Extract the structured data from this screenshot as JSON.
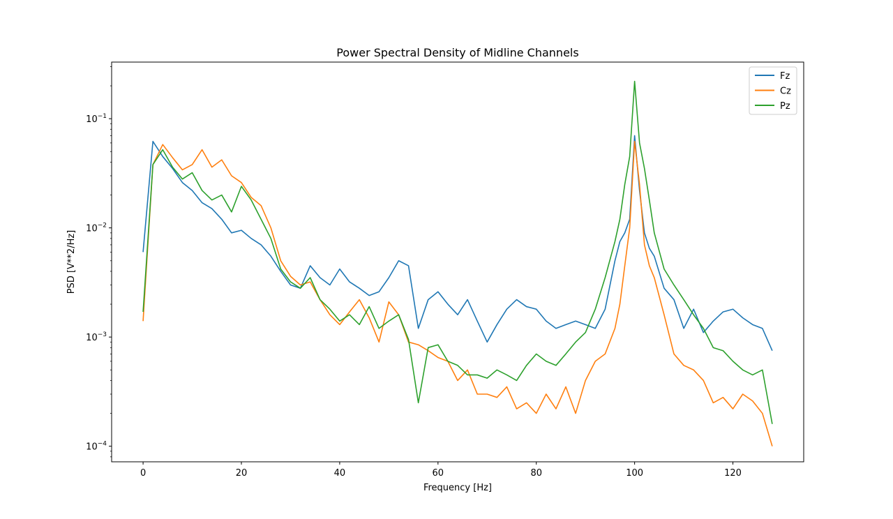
{
  "chart_data": {
    "type": "line",
    "title": "Power Spectral Density of Midline Channels",
    "xlabel": "Frequency [Hz]",
    "ylabel": "PSD [V**2/Hz]",
    "xlim": [
      -6.4,
      134.4
    ],
    "ylim": [
      7.2e-05,
      0.33
    ],
    "yscale": "log",
    "grid": false,
    "legend_position": "top-right",
    "x_ticks": [
      {
        "value": 0,
        "label": "0"
      },
      {
        "value": 20,
        "label": "20"
      },
      {
        "value": 40,
        "label": "40"
      },
      {
        "value": 60,
        "label": "60"
      },
      {
        "value": 80,
        "label": "80"
      },
      {
        "value": 100,
        "label": "100"
      },
      {
        "value": 120,
        "label": "120"
      }
    ],
    "y_ticks": [
      {
        "value": 0.0001,
        "base": "10",
        "exp": "−4"
      },
      {
        "value": 0.001,
        "base": "10",
        "exp": "−3"
      },
      {
        "value": 0.01,
        "base": "10",
        "exp": "−2"
      },
      {
        "value": 0.1,
        "base": "10",
        "exp": "−1"
      }
    ],
    "x": [
      0,
      2,
      4,
      6,
      8,
      10,
      12,
      14,
      16,
      18,
      20,
      22,
      24,
      26,
      28,
      30,
      32,
      34,
      36,
      38,
      40,
      42,
      44,
      46,
      48,
      50,
      52,
      54,
      56,
      58,
      60,
      62,
      64,
      66,
      68,
      70,
      72,
      74,
      76,
      78,
      80,
      82,
      84,
      86,
      88,
      90,
      92,
      94,
      96,
      97,
      98,
      99,
      100,
      101,
      102,
      103,
      104,
      106,
      108,
      110,
      112,
      114,
      116,
      118,
      120,
      122,
      124,
      126,
      128
    ],
    "series": [
      {
        "name": "Fz",
        "color": "#1f77b4",
        "values": [
          0.006,
          0.062,
          0.045,
          0.035,
          0.026,
          0.022,
          0.017,
          0.015,
          0.012,
          0.009,
          0.0095,
          0.008,
          0.007,
          0.0055,
          0.004,
          0.003,
          0.0028,
          0.0045,
          0.0035,
          0.003,
          0.0042,
          0.0032,
          0.0028,
          0.0024,
          0.0026,
          0.0035,
          0.005,
          0.0045,
          0.0012,
          0.0022,
          0.0026,
          0.002,
          0.0016,
          0.0022,
          0.0014,
          0.0009,
          0.0013,
          0.0018,
          0.0022,
          0.0019,
          0.0018,
          0.0014,
          0.0012,
          0.0013,
          0.0014,
          0.0013,
          0.0012,
          0.0018,
          0.005,
          0.0075,
          0.009,
          0.012,
          0.07,
          0.022,
          0.009,
          0.0065,
          0.0055,
          0.0028,
          0.0022,
          0.0012,
          0.0018,
          0.0011,
          0.0014,
          0.0017,
          0.0018,
          0.0015,
          0.0013,
          0.0012,
          0.00075
        ]
      },
      {
        "name": "Cz",
        "color": "#ff7f0e",
        "values": [
          0.0014,
          0.038,
          0.058,
          0.044,
          0.034,
          0.038,
          0.052,
          0.036,
          0.042,
          0.03,
          0.026,
          0.019,
          0.016,
          0.01,
          0.005,
          0.0036,
          0.003,
          0.0032,
          0.0022,
          0.0016,
          0.0013,
          0.0017,
          0.0022,
          0.0015,
          0.0009,
          0.0021,
          0.0016,
          0.0009,
          0.00085,
          0.00075,
          0.00065,
          0.0006,
          0.0004,
          0.0005,
          0.0003,
          0.0003,
          0.00028,
          0.00035,
          0.00022,
          0.00025,
          0.0002,
          0.0003,
          0.00022,
          0.00035,
          0.0002,
          0.0004,
          0.0006,
          0.0007,
          0.0012,
          0.002,
          0.0045,
          0.01,
          0.062,
          0.025,
          0.007,
          0.0045,
          0.0035,
          0.0016,
          0.0007,
          0.00055,
          0.0005,
          0.0004,
          0.00025,
          0.00028,
          0.00022,
          0.0003,
          0.00026,
          0.0002,
          0.0001
        ]
      },
      {
        "name": "Pz",
        "color": "#2ca02c",
        "values": [
          0.0017,
          0.038,
          0.052,
          0.036,
          0.028,
          0.032,
          0.022,
          0.018,
          0.02,
          0.014,
          0.024,
          0.018,
          0.012,
          0.008,
          0.0042,
          0.0032,
          0.0028,
          0.0035,
          0.0022,
          0.0018,
          0.0014,
          0.0016,
          0.0013,
          0.0019,
          0.0012,
          0.0014,
          0.0016,
          0.00095,
          0.00025,
          0.0008,
          0.00085,
          0.0006,
          0.00055,
          0.00045,
          0.00045,
          0.00042,
          0.0005,
          0.00045,
          0.0004,
          0.00055,
          0.0007,
          0.0006,
          0.00055,
          0.0007,
          0.0009,
          0.0011,
          0.0018,
          0.0035,
          0.0075,
          0.012,
          0.025,
          0.045,
          0.22,
          0.06,
          0.035,
          0.018,
          0.009,
          0.0042,
          0.003,
          0.0022,
          0.0016,
          0.0012,
          0.0008,
          0.00075,
          0.0006,
          0.0005,
          0.00045,
          0.0005,
          0.00016
        ]
      }
    ]
  }
}
